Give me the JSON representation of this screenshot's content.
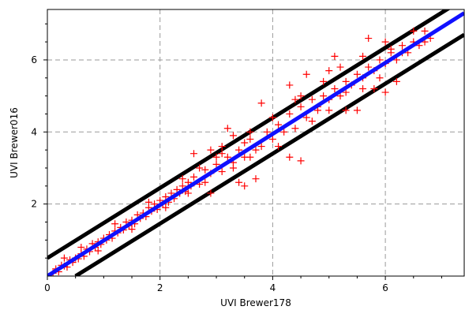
{
  "chart_data": {
    "type": "scatter",
    "title": "",
    "xlabel": "UVI Brewer178",
    "ylabel": "UVI Brewer016",
    "xlim": [
      0,
      7.4
    ],
    "ylim": [
      0,
      7.4
    ],
    "xticks": [
      0,
      2,
      4,
      6
    ],
    "yticks": [
      2,
      4,
      6
    ],
    "x_tick_labels": [
      "0",
      "2",
      "4",
      "6"
    ],
    "y_tick_labels": [
      "2",
      "4",
      "6"
    ],
    "grid": true,
    "grid_style": "dashed",
    "legend": null,
    "colors": {
      "points": "#ff0000",
      "fit_line": "#1010ff",
      "bounds": "#000000",
      "grid": "#9a9a9a",
      "axes": "#000000"
    },
    "lines": [
      {
        "role": "fit",
        "x": [
          0,
          7.4
        ],
        "y": [
          0,
          7.3
        ]
      },
      {
        "role": "upper-bound",
        "x": [
          0,
          7.4
        ],
        "y": [
          0.5,
          7.7
        ]
      },
      {
        "role": "lower-bound",
        "x": [
          0.5,
          7.4
        ],
        "y": [
          0,
          6.7
        ]
      }
    ],
    "points": [
      [
        0.1,
        0.08
      ],
      [
        0.15,
        0.2
      ],
      [
        0.2,
        0.12
      ],
      [
        0.25,
        0.3
      ],
      [
        0.3,
        0.28
      ],
      [
        0.35,
        0.25
      ],
      [
        0.4,
        0.45
      ],
      [
        0.45,
        0.38
      ],
      [
        0.5,
        0.5
      ],
      [
        0.55,
        0.48
      ],
      [
        0.6,
        0.62
      ],
      [
        0.65,
        0.55
      ],
      [
        0.7,
        0.75
      ],
      [
        0.75,
        0.68
      ],
      [
        0.8,
        0.9
      ],
      [
        0.85,
        0.8
      ],
      [
        0.9,
        0.95
      ],
      [
        0.95,
        0.88
      ],
      [
        1.0,
        1.05
      ],
      [
        1.05,
        1.0
      ],
      [
        1.1,
        1.15
      ],
      [
        1.15,
        1.05
      ],
      [
        1.2,
        1.25
      ],
      [
        1.25,
        1.2
      ],
      [
        1.3,
        1.35
      ],
      [
        1.35,
        1.28
      ],
      [
        1.4,
        1.5
      ],
      [
        1.45,
        1.4
      ],
      [
        1.5,
        1.55
      ],
      [
        1.55,
        1.45
      ],
      [
        1.6,
        1.7
      ],
      [
        1.65,
        1.6
      ],
      [
        1.7,
        1.75
      ],
      [
        1.75,
        1.65
      ],
      [
        1.8,
        1.9
      ],
      [
        1.85,
        1.8
      ],
      [
        1.9,
        2.0
      ],
      [
        1.95,
        1.85
      ],
      [
        2.0,
        2.1
      ],
      [
        2.05,
        2.0
      ],
      [
        2.1,
        2.2
      ],
      [
        2.15,
        2.05
      ],
      [
        2.2,
        2.3
      ],
      [
        2.25,
        2.15
      ],
      [
        2.3,
        2.4
      ],
      [
        2.35,
        2.3
      ],
      [
        2.4,
        2.5
      ],
      [
        2.45,
        2.35
      ],
      [
        2.5,
        2.6
      ],
      [
        2.55,
        2.5
      ],
      [
        0.3,
        0.5
      ],
      [
        0.6,
        0.8
      ],
      [
        0.9,
        0.7
      ],
      [
        1.2,
        1.45
      ],
      [
        1.5,
        1.3
      ],
      [
        1.8,
        2.05
      ],
      [
        2.1,
        1.9
      ],
      [
        2.4,
        2.7
      ],
      [
        2.5,
        2.3
      ],
      [
        2.8,
        2.6
      ],
      [
        2.6,
        2.75
      ],
      [
        2.7,
        2.55
      ],
      [
        2.8,
        2.95
      ],
      [
        2.9,
        2.85
      ],
      [
        3.0,
        3.1
      ],
      [
        3.1,
        2.9
      ],
      [
        3.2,
        3.3
      ],
      [
        3.3,
        3.15
      ],
      [
        3.4,
        3.5
      ],
      [
        3.5,
        3.3
      ],
      [
        2.9,
        3.5
      ],
      [
        3.0,
        3.3
      ],
      [
        3.1,
        3.6
      ],
      [
        3.3,
        3.0
      ],
      [
        3.4,
        2.6
      ],
      [
        3.5,
        2.5
      ],
      [
        3.6,
        3.3
      ],
      [
        3.7,
        2.7
      ],
      [
        3.8,
        4.8
      ],
      [
        3.9,
        4.0
      ],
      [
        2.6,
        3.4
      ],
      [
        2.7,
        3.0
      ],
      [
        3.2,
        4.1
      ],
      [
        3.3,
        3.9
      ],
      [
        3.5,
        3.7
      ],
      [
        3.6,
        3.8
      ],
      [
        3.7,
        3.5
      ],
      [
        4.0,
        3.8
      ],
      [
        4.1,
        4.2
      ],
      [
        4.2,
        4.0
      ],
      [
        3.6,
        4.0
      ],
      [
        3.8,
        3.6
      ],
      [
        4.0,
        4.4
      ],
      [
        4.1,
        3.6
      ],
      [
        4.3,
        4.5
      ],
      [
        4.4,
        4.1
      ],
      [
        4.5,
        4.7
      ],
      [
        4.6,
        4.4
      ],
      [
        4.7,
        4.9
      ],
      [
        4.8,
        4.6
      ],
      [
        4.3,
        3.3
      ],
      [
        4.5,
        3.2
      ],
      [
        4.4,
        4.9
      ],
      [
        4.6,
        5.6
      ],
      [
        4.7,
        4.3
      ],
      [
        4.9,
        5.0
      ],
      [
        5.0,
        4.9
      ],
      [
        5.1,
        5.2
      ],
      [
        5.2,
        5.0
      ],
      [
        5.3,
        5.4
      ],
      [
        4.3,
        5.3
      ],
      [
        4.5,
        5.0
      ],
      [
        4.8,
        4.7
      ],
      [
        5.0,
        4.6
      ],
      [
        5.1,
        6.1
      ],
      [
        5.2,
        5.8
      ],
      [
        5.4,
        5.3
      ],
      [
        5.5,
        5.6
      ],
      [
        5.6,
        5.5
      ],
      [
        5.7,
        5.8
      ],
      [
        5.3,
        4.6
      ],
      [
        5.5,
        4.6
      ],
      [
        5.6,
        6.1
      ],
      [
        5.8,
        5.7
      ],
      [
        5.9,
        6.0
      ],
      [
        6.0,
        5.9
      ],
      [
        6.1,
        6.2
      ],
      [
        6.2,
        6.0
      ],
      [
        6.3,
        6.4
      ],
      [
        6.4,
        6.2
      ],
      [
        5.7,
        6.6
      ],
      [
        5.9,
        5.5
      ],
      [
        6.0,
        5.1
      ],
      [
        6.1,
        6.3
      ],
      [
        6.2,
        5.4
      ],
      [
        6.3,
        6.2
      ],
      [
        6.5,
        6.5
      ],
      [
        6.6,
        6.4
      ],
      [
        6.7,
        6.8
      ],
      [
        6.8,
        6.6
      ],
      [
        4.9,
        5.4
      ],
      [
        5.0,
        5.7
      ],
      [
        5.3,
        5.1
      ],
      [
        5.6,
        5.2
      ],
      [
        5.8,
        5.2
      ],
      [
        6.0,
        6.5
      ],
      [
        6.5,
        6.8
      ],
      [
        6.7,
        6.5
      ],
      [
        2.9,
        2.3
      ],
      [
        3.1,
        3.4
      ]
    ]
  }
}
